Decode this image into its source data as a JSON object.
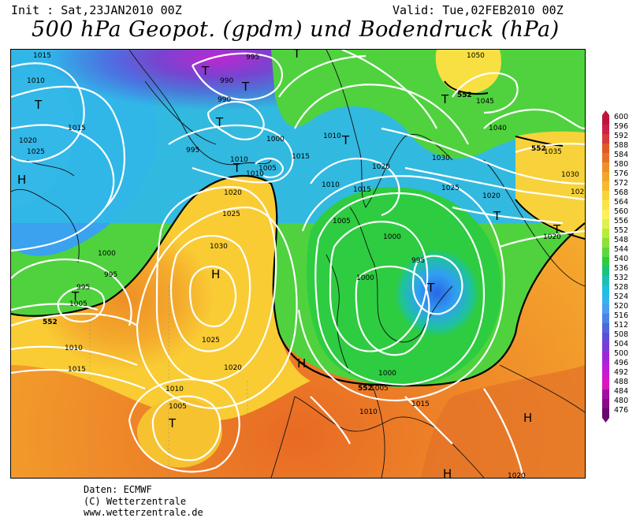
{
  "header": {
    "init": "Init : Sat,23JAN2010 00Z",
    "valid": "Valid: Tue,02FEB2010 00Z",
    "title": "500 hPa Geopot. (gpdm) und Bodendruck (hPa)"
  },
  "map_labels": {
    "pressure_centers": [
      {
        "name": "low-north-atlantic",
        "text": "T"
      },
      {
        "name": "low-greenland-1",
        "text": "T"
      },
      {
        "name": "low-greenland-2",
        "text": "T"
      },
      {
        "name": "low-greenland-3",
        "text": "T"
      },
      {
        "name": "low-iceland",
        "text": "T"
      },
      {
        "name": "low-arctic",
        "text": "T"
      },
      {
        "name": "low-scandinavia",
        "text": "T"
      },
      {
        "name": "low-baltic",
        "text": "T"
      },
      {
        "name": "low-russia",
        "text": "T"
      },
      {
        "name": "low-labrador",
        "text": "T"
      },
      {
        "name": "low-azores",
        "text": "T"
      },
      {
        "name": "low-eastern-europe",
        "text": "T"
      },
      {
        "name": "high-canada",
        "text": "H"
      },
      {
        "name": "high-atlantic",
        "text": "H"
      },
      {
        "name": "high-biscay",
        "text": "H"
      },
      {
        "name": "high-mediterranean",
        "text": "H"
      },
      {
        "name": "high-north-africa",
        "text": "H"
      },
      {
        "name": "high-russia-east",
        "text": "T"
      }
    ],
    "isobars": [
      "1015",
      "1010",
      "1015",
      "1020",
      "1025",
      "995",
      "990",
      "990",
      "995",
      "1000",
      "1005",
      "1010",
      "1010",
      "1005",
      "1020",
      "1025",
      "1030",
      "1000",
      "995",
      "1005",
      "1010",
      "1015",
      "1020",
      "1025",
      "1030",
      "1010",
      "1015",
      "1005",
      "1000",
      "995",
      "1000",
      "1005",
      "1010",
      "1015",
      "1020",
      "1025",
      "1010",
      "1005",
      "1015",
      "1020",
      "1030",
      "1035",
      "1040",
      "1045",
      "1050",
      "1020",
      "1030",
      "1010",
      "1000",
      "1005",
      "1010",
      "1020",
      "102"
    ],
    "contours": [
      "552",
      "552",
      "552",
      "552"
    ]
  },
  "legend": {
    "values": [
      "600",
      "596",
      "592",
      "588",
      "584",
      "580",
      "576",
      "572",
      "568",
      "564",
      "560",
      "556",
      "552",
      "548",
      "544",
      "540",
      "536",
      "532",
      "528",
      "524",
      "520",
      "516",
      "512",
      "508",
      "504",
      "500",
      "496",
      "492",
      "488",
      "484",
      "480",
      "476"
    ],
    "colors": [
      "#c0143a",
      "#cc1f4a",
      "#d63a3a",
      "#e05a28",
      "#e8712a",
      "#ee8f26",
      "#f2a52a",
      "#f6bb2c",
      "#fad436",
      "#fce448",
      "#fff05c",
      "#e0f050",
      "#b8ec3a",
      "#8ee03a",
      "#5cd83c",
      "#2ecc40",
      "#1ec280",
      "#1cc0b4",
      "#20bfe0",
      "#34b4ee",
      "#4aa0f0",
      "#4c84e6",
      "#5068dc",
      "#5f4fd8",
      "#7a3cd8",
      "#9a28d8",
      "#b81ed8",
      "#cc18d0",
      "#d818bc",
      "#a0109e",
      "#8a0a88",
      "#6a0870"
    ]
  },
  "footer": {
    "line1": "Daten: ECMWF",
    "line2": "(C) Wetterzentrale",
    "line3": "www.wetterzentrale.de"
  }
}
